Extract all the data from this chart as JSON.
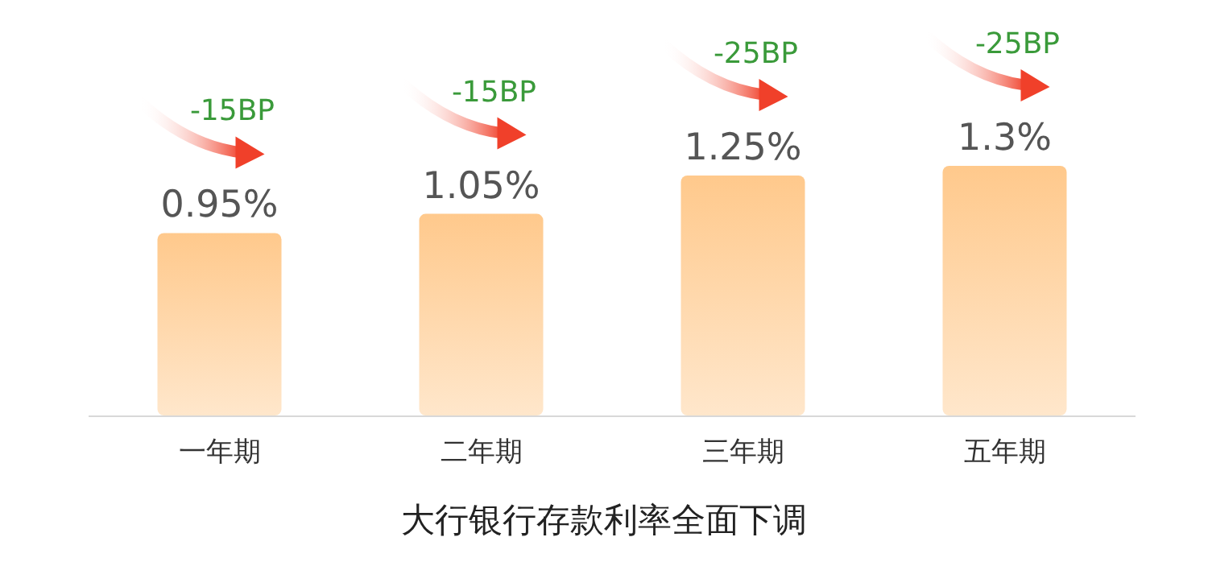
{
  "chart_data": {
    "type": "bar",
    "title": "大行银行存款利率全面下调",
    "categories": [
      "一年期",
      "二年期",
      "三年期",
      "五年期"
    ],
    "values": [
      0.95,
      1.05,
      1.25,
      1.3
    ],
    "value_labels": [
      "0.95%",
      "1.05%",
      "1.25%",
      "1.3%"
    ],
    "color": "#ffc98c",
    "annotations": [
      "-15BP",
      "-15BP",
      "-25BP",
      "-25BP"
    ]
  }
}
